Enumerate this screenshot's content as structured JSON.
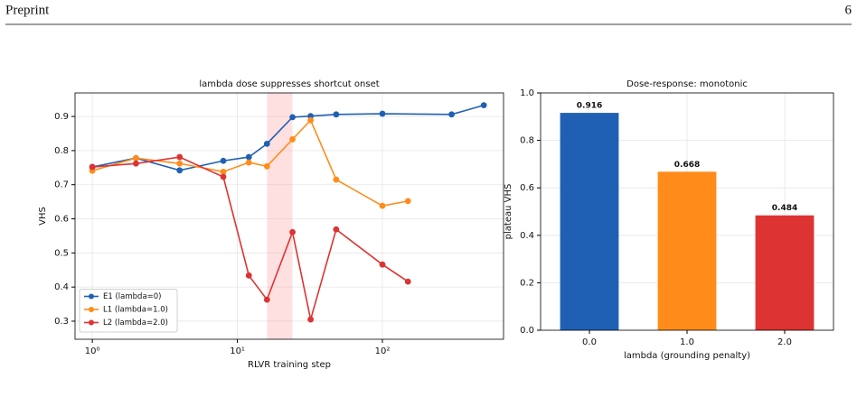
{
  "header": {
    "title": "Preprint",
    "page": "6"
  },
  "chart_data": [
    {
      "type": "line",
      "title": "lambda dose suppresses shortcut onset",
      "xlabel": "RLVR training step",
      "ylabel": "VHS",
      "xscale": "log",
      "xlim": [
        0.76,
        684
      ],
      "ylim": [
        0.247,
        0.969
      ],
      "xticks": [
        {
          "value": 1,
          "label": "10⁰"
        },
        {
          "value": 10,
          "label": "10¹"
        },
        {
          "value": 100,
          "label": "10²"
        }
      ],
      "yticks": [
        0.3,
        0.4,
        0.5,
        0.6,
        0.7,
        0.8,
        0.9
      ],
      "grid": true,
      "legend": "lower left",
      "shade": [
        16,
        24
      ],
      "shade_color": "#ff9999",
      "series": [
        {
          "name": "E1 (lambda=0)",
          "color": "#2060b4",
          "x": [
            1,
            2,
            4,
            8,
            12,
            16,
            24,
            32,
            48,
            100,
            300,
            500
          ],
          "values": [
            0.752,
            0.778,
            0.742,
            0.77,
            0.781,
            0.82,
            0.898,
            0.901,
            0.906,
            0.908,
            0.906,
            0.933
          ]
        },
        {
          "name": "L1 (lambda=1.0)",
          "color": "#ff8c1a",
          "x": [
            1,
            2,
            4,
            8,
            12,
            16,
            24,
            32,
            48,
            100,
            150
          ],
          "values": [
            0.741,
            0.778,
            0.762,
            0.738,
            0.765,
            0.754,
            0.833,
            0.889,
            0.715,
            0.638,
            0.652
          ]
        },
        {
          "name": "L2 (lambda=2.0)",
          "color": "#dd3333",
          "x": [
            1,
            2,
            4,
            8,
            12,
            16,
            24,
            32,
            48,
            100,
            150
          ],
          "values": [
            0.752,
            0.762,
            0.781,
            0.723,
            0.434,
            0.363,
            0.561,
            0.305,
            0.569,
            0.466,
            0.416
          ]
        }
      ]
    },
    {
      "type": "bar",
      "title": "Dose-response: monotonic",
      "xlabel": "lambda (grounding penalty)",
      "ylabel": "plateau VHS",
      "categories": [
        "0.0",
        "1.0",
        "2.0"
      ],
      "values": [
        0.916,
        0.668,
        0.484
      ],
      "colors": [
        "#2060b4",
        "#ff8c1a",
        "#dd3333"
      ],
      "ylim": [
        0,
        1
      ],
      "yticks": [
        {
          "value": 0,
          "label": "0.0"
        },
        0.2,
        0.4,
        0.6,
        0.8,
        {
          "value": 1,
          "label": "1.0"
        }
      ],
      "grid": true
    }
  ]
}
